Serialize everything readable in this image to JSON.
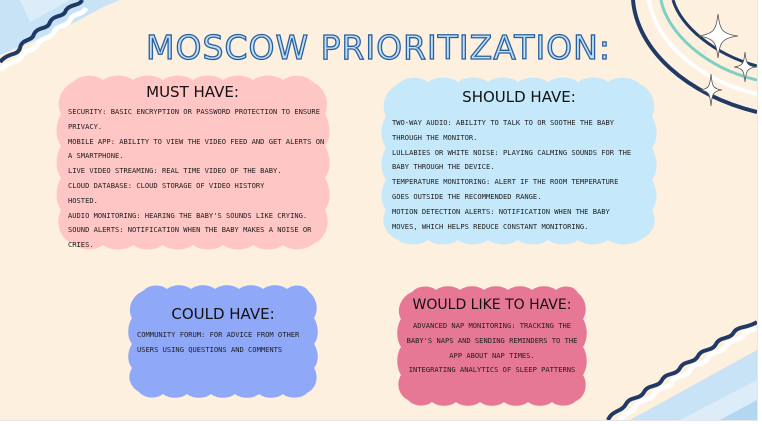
{
  "title": "MOSCOW PRIORITIZATION:",
  "colors": {
    "background": "#fdf0de",
    "must": "#ffc6c6",
    "should": "#c6e8fb",
    "could": "#8fa8f8",
    "would": "#e67896",
    "title_fill": "#bfe0f7",
    "title_stroke": "#2a5f9e"
  },
  "must": {
    "heading": "MUST HAVE:",
    "lines": [
      "SECURITY: BASIC ENCRYPTION OR PASSWORD PROTECTION TO ENSURE",
      "PRIVACY.",
      "MOBILE APP: ABILITY TO VIEW THE VIDEO FEED AND GET ALERTS ON",
      "A SMARTPHONE.",
      "LIVE VIDEO STREAMING: REAL TIME VIDEO OF THE BABY.",
      "CLOUD DATABASE: CLOUD STORAGE OF VIDEO HISTORY",
      "HOSTED.",
      "AUDIO MONITORING: HEARING THE BABY'S SOUNDS LIKE CRYING.",
      "SOUND ALERTS: NOTIFICATION WHEN THE BABY MAKES A NOISE OR",
      "CRIES."
    ]
  },
  "should": {
    "heading": "SHOULD HAVE:",
    "lines": [
      "TWO-WAY AUDIO: ABILITY TO TALK TO OR SOOTHE THE BABY",
      "THROUGH THE MONITOR.",
      "LULLABIES OR WHITE NOISE: PLAYING CALMING SOUNDS FOR THE",
      "BABY THROUGH THE DEVICE.",
      "TEMPERATURE MONITORING: ALERT IF THE ROOM TEMPERATURE",
      "GOES OUTSIDE THE RECOMMENDED RANGE.",
      "MOTION DETECTION ALERTS: NOTIFICATION WHEN THE BABY",
      "MOVES, WHICH HELPS REDUCE CONSTANT MONITORING."
    ]
  },
  "could": {
    "heading": "COULD HAVE:",
    "lines": [
      "COMMUNITY FORUM: FOR ADVICE FROM OTHER",
      "USERS USING QUESTIONS AND COMMENTS"
    ]
  },
  "would": {
    "heading": "WOULD LIKE TO HAVE:",
    "lines": [
      "ADVANCED NAP MONITORING: TRACKING THE",
      "BABY'S NAPS AND SENDING REMINDERS TO THE",
      "APP ABOUT NAP TIMES.",
      "INTEGRATING ANALYTICS OF SLEEP PATTERNS"
    ]
  }
}
